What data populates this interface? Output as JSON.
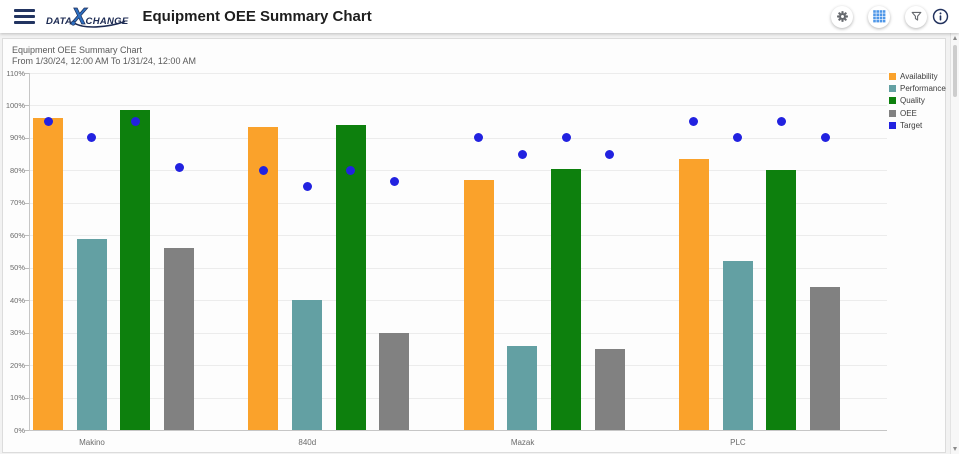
{
  "app_bar": {
    "logo": {
      "part1": "DATA",
      "x": "X",
      "part2": "CHANGE"
    },
    "title": "Equipment OEE Summary Chart",
    "icons": [
      "menu-icon",
      "gear-icon",
      "grid-icon",
      "filter-icon",
      "info-icon"
    ]
  },
  "panel": {
    "title": "Equipment OEE Summary Chart",
    "subtitle": "From 1/30/24, 12:00 AM To 1/31/24, 12:00 AM"
  },
  "chart_data": {
    "type": "bar",
    "title": "Equipment OEE Summary Chart",
    "subtitle": "From 1/30/24, 12:00 AM To 1/31/24, 12:00 AM",
    "categories": [
      "Makino",
      "840d",
      "Mazak",
      "PLC"
    ],
    "series": [
      {
        "name": "Availability",
        "color": "#faa22b",
        "values": [
          96,
          93.5,
          77,
          83.5
        ]
      },
      {
        "name": "Performance",
        "color": "#63a0a3",
        "values": [
          59,
          40,
          26,
          52
        ]
      },
      {
        "name": "Quality",
        "color": "#0d800d",
        "values": [
          98.5,
          94,
          80.5,
          80
        ]
      },
      {
        "name": "OEE",
        "color": "#818181",
        "values": [
          56,
          30,
          25,
          44
        ]
      }
    ],
    "target_series": {
      "name": "Target",
      "color": "#2222e0",
      "marker": "circle",
      "values_by_category": [
        [
          95,
          90,
          95,
          81
        ],
        [
          80,
          75,
          80,
          76.5
        ],
        [
          90,
          85,
          90,
          85
        ],
        [
          95,
          90,
          95,
          90
        ]
      ]
    },
    "ylim": [
      0,
      110
    ],
    "ytick_step": 10,
    "ytick_suffix": "%",
    "grid": true,
    "legend_position": "right",
    "legend": [
      "Availability",
      "Performance",
      "Quality",
      "OEE",
      "Target"
    ]
  },
  "colors": {
    "navy": "#1c2a52",
    "logo_x_blue": "#2d6fc0",
    "grid_icon_blue": "#4f97e8",
    "icon_gray": "#66696e"
  }
}
